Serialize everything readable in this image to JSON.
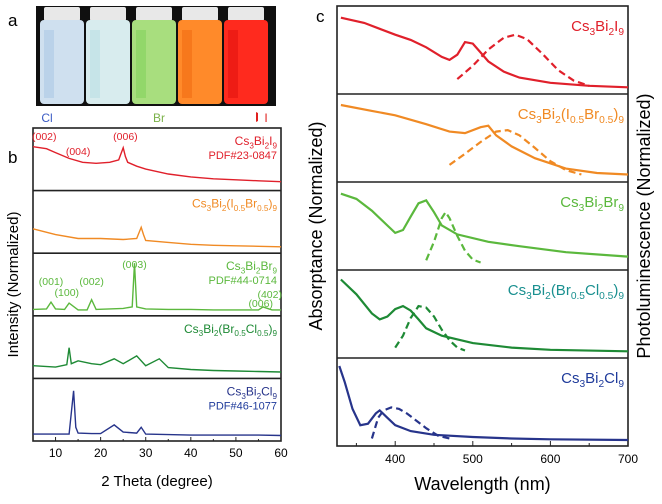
{
  "panels": {
    "a": "a",
    "b": "b",
    "c": "c"
  },
  "photo": {
    "vials": [
      {
        "color": "#cfe0ef",
        "tint": "#a9c6e4"
      },
      {
        "color": "#d8ecee",
        "tint": "#b8dfe3"
      },
      {
        "color": "#a8de7e",
        "tint": "#7fd15a"
      },
      {
        "color": "#ff8a2a",
        "tint": "#f06a10"
      },
      {
        "color": "#ff2a1e",
        "tint": "#e0100e"
      }
    ],
    "scale_labels": [
      "Cl",
      "Br",
      "I"
    ]
  },
  "colors": {
    "red": "#e0202b",
    "orange": "#f08a24",
    "lightgreen": "#5bb83d",
    "darkgreen": "#1e8a35",
    "blue": "#27348b",
    "blue_text": "#1f3b9b",
    "teal_text": "#1a9090"
  },
  "chart_data": [
    {
      "type": "line",
      "panel": "b",
      "xlabel": "2 Theta (degree)",
      "ylabel": "Intensity (Normalized)",
      "xlim": [
        5,
        60
      ],
      "xticks": [
        10,
        20,
        30,
        40,
        50,
        60
      ],
      "series": [
        {
          "compound_parts": [
            [
              "Cs",
              ""
            ],
            [
              "3",
              "sub"
            ],
            [
              "Bi",
              ""
            ],
            [
              "2",
              "sub"
            ],
            [
              "I",
              ""
            ],
            [
              "9",
              "sub"
            ]
          ],
          "pdf": "PDF#23-0847",
          "color_key": "red",
          "peaks": [
            [
              "(002)",
              7.5
            ],
            [
              "(004)",
              15
            ],
            [
              "(006)",
              25.5
            ]
          ],
          "x": [
            5,
            8,
            10,
            13,
            16,
            19,
            22,
            24,
            25,
            25.5,
            26,
            28,
            30,
            35,
            40,
            45,
            50,
            55,
            60
          ],
          "y": [
            0.82,
            0.78,
            0.7,
            0.58,
            0.5,
            0.48,
            0.5,
            0.55,
            0.8,
            0.62,
            0.5,
            0.42,
            0.36,
            0.26,
            0.2,
            0.16,
            0.14,
            0.12,
            0.1
          ]
        },
        {
          "compound_parts": [
            [
              "Cs",
              ""
            ],
            [
              "3",
              "sub"
            ],
            [
              "Bi",
              ""
            ],
            [
              "2",
              "sub"
            ],
            [
              "(I",
              ""
            ],
            [
              "0.5",
              "sub"
            ],
            [
              "Br",
              ""
            ],
            [
              "0.5",
              "sub"
            ],
            [
              ")",
              ""
            ],
            [
              "9",
              "sub"
            ]
          ],
          "color_key": "orange",
          "x": [
            5,
            10,
            15,
            20,
            25,
            28,
            29,
            29.5,
            30,
            35,
            40,
            45,
            50,
            55,
            60
          ],
          "y": [
            0.42,
            0.3,
            0.22,
            0.22,
            0.2,
            0.22,
            0.45,
            0.3,
            0.18,
            0.14,
            0.1,
            0.08,
            0.07,
            0.06,
            0.05
          ]
        },
        {
          "compound_parts": [
            [
              "Cs",
              ""
            ],
            [
              "3",
              "sub"
            ],
            [
              "Bi",
              ""
            ],
            [
              "2",
              "sub"
            ],
            [
              "Br",
              ""
            ],
            [
              "9",
              "sub"
            ]
          ],
          "pdf": "PDF#44-0714",
          "color_key": "lightgreen",
          "peaks": [
            [
              "(001)",
              9
            ],
            [
              "(100)",
              12.5
            ],
            [
              "(002)",
              18
            ],
            [
              "(003)",
              27.5
            ],
            [
              "(006)",
              55.5
            ],
            [
              "(402)",
              57.5
            ]
          ],
          "x": [
            5,
            8,
            9,
            10,
            12,
            13,
            15,
            17,
            18,
            19,
            22,
            25,
            27,
            27.5,
            28,
            30,
            35,
            40,
            45,
            50,
            55,
            56,
            58,
            60
          ],
          "y": [
            0.05,
            0.06,
            0.2,
            0.06,
            0.05,
            0.18,
            0.04,
            0.04,
            0.25,
            0.05,
            0.06,
            0.07,
            0.1,
            1.0,
            0.1,
            0.06,
            0.05,
            0.05,
            0.04,
            0.04,
            0.04,
            0.1,
            0.04,
            0.04
          ]
        },
        {
          "compound_parts": [
            [
              "Cs",
              ""
            ],
            [
              "3",
              "sub"
            ],
            [
              "Bi",
              ""
            ],
            [
              "2",
              "sub"
            ],
            [
              "(Br",
              ""
            ],
            [
              "0.5",
              "sub"
            ],
            [
              "Cl",
              ""
            ],
            [
              "0.5",
              "sub"
            ],
            [
              ")",
              ""
            ],
            [
              "9",
              "sub"
            ]
          ],
          "color_key": "darkgreen",
          "x": [
            5,
            10,
            12.5,
            13,
            13.5,
            15,
            18,
            20,
            23,
            25,
            28,
            30,
            33,
            35,
            40,
            45,
            50,
            55,
            60
          ],
          "y": [
            0.18,
            0.15,
            0.2,
            0.55,
            0.22,
            0.28,
            0.22,
            0.2,
            0.32,
            0.22,
            0.38,
            0.18,
            0.32,
            0.14,
            0.1,
            0.08,
            0.07,
            0.06,
            0.05
          ]
        },
        {
          "compound_parts": [
            [
              "Cs",
              ""
            ],
            [
              "3",
              "sub"
            ],
            [
              "Bi",
              ""
            ],
            [
              "2",
              "sub"
            ],
            [
              "Cl",
              ""
            ],
            [
              "9",
              "sub"
            ]
          ],
          "pdf": "PDF#46-1077",
          "color_key": "blue",
          "x": [
            5,
            10,
            13,
            14,
            14.5,
            15,
            18,
            20,
            23,
            25,
            28,
            29,
            30,
            35,
            40,
            45,
            50,
            55,
            60
          ],
          "y": [
            0.06,
            0.06,
            0.06,
            0.95,
            0.2,
            0.08,
            0.07,
            0.07,
            0.25,
            0.1,
            0.08,
            0.2,
            0.06,
            0.05,
            0.04,
            0.04,
            0.04,
            0.04,
            0.03
          ]
        }
      ]
    },
    {
      "type": "line",
      "panel": "c",
      "xlabel": "Wavelength (nm)",
      "ylabel_left": "Absorptance (Normalized)",
      "ylabel_right": "Photoluminescence (Normalized)",
      "xlim": [
        325,
        700
      ],
      "xticks": [
        400,
        500,
        600,
        700
      ],
      "series": [
        {
          "compound_parts": [
            [
              "Cs",
              ""
            ],
            [
              "3",
              "sub"
            ],
            [
              "Bi",
              ""
            ],
            [
              "2",
              "sub"
            ],
            [
              "I",
              ""
            ],
            [
              "9",
              "sub"
            ]
          ],
          "color_key": "red",
          "absorptance": {
            "x": [
              330,
              360,
              380,
              400,
              420,
              440,
              460,
              470,
              480,
              490,
              500,
              510,
              520,
              540,
              560,
              600,
              650,
              700
            ],
            "y": [
              0.95,
              0.88,
              0.8,
              0.72,
              0.65,
              0.55,
              0.42,
              0.38,
              0.45,
              0.62,
              0.6,
              0.48,
              0.36,
              0.22,
              0.14,
              0.07,
              0.03,
              0.01
            ]
          },
          "pl": {
            "x": [
              480,
              500,
              520,
              540,
              555,
              570,
              590,
              610,
              630,
              650
            ],
            "y": [
              0.12,
              0.3,
              0.52,
              0.68,
              0.72,
              0.66,
              0.46,
              0.24,
              0.1,
              0.03
            ]
          }
        },
        {
          "compound_parts": [
            [
              "Cs",
              ""
            ],
            [
              "3",
              "sub"
            ],
            [
              "Bi",
              ""
            ],
            [
              "2",
              "sub"
            ],
            [
              "(I",
              ""
            ],
            [
              "0.5",
              "sub"
            ],
            [
              "Br",
              ""
            ],
            [
              "0.5",
              "sub"
            ],
            [
              ")",
              ""
            ],
            [
              "9",
              "sub"
            ]
          ],
          "color_key": "orange",
          "absorptance": {
            "x": [
              330,
              370,
              400,
              440,
              470,
              490,
              510,
              520,
              530,
              550,
              580,
              620,
              660,
              700
            ],
            "y": [
              0.96,
              0.88,
              0.82,
              0.7,
              0.6,
              0.58,
              0.66,
              0.68,
              0.55,
              0.4,
              0.24,
              0.1,
              0.04,
              0.02
            ]
          },
          "pl": {
            "x": [
              470,
              490,
              510,
              530,
              545,
              560,
              580,
              600,
              620,
              640
            ],
            "y": [
              0.15,
              0.3,
              0.46,
              0.6,
              0.62,
              0.55,
              0.38,
              0.2,
              0.08,
              0.02
            ]
          }
        },
        {
          "compound_parts": [
            [
              "Cs",
              ""
            ],
            [
              "3",
              "sub"
            ],
            [
              "Bi",
              ""
            ],
            [
              "2",
              "sub"
            ],
            [
              "Br",
              ""
            ],
            [
              "9",
              "sub"
            ]
          ],
          "color_key": "lightgreen",
          "absorptance": {
            "x": [
              330,
              350,
              370,
              390,
              400,
              410,
              420,
              430,
              440,
              450,
              460,
              480,
              520,
              560,
              620,
              700
            ],
            "y": [
              0.95,
              0.88,
              0.72,
              0.52,
              0.42,
              0.46,
              0.64,
              0.82,
              0.86,
              0.7,
              0.52,
              0.4,
              0.3,
              0.24,
              0.16,
              0.1
            ]
          },
          "pl": {
            "x": [
              440,
              450,
              460,
              465,
              470,
              480,
              490,
              500,
              510
            ],
            "y": [
              0.05,
              0.3,
              0.62,
              0.7,
              0.62,
              0.38,
              0.18,
              0.06,
              0.02
            ]
          }
        },
        {
          "compound_parts": [
            [
              "Cs",
              ""
            ],
            [
              "3",
              "sub"
            ],
            [
              "Bi",
              ""
            ],
            [
              "2",
              "sub"
            ],
            [
              "(Br",
              ""
            ],
            [
              "0.5",
              "sub"
            ],
            [
              "Cl",
              ""
            ],
            [
              "0.5",
              "sub"
            ],
            [
              ")",
              ""
            ],
            [
              "9",
              "sub"
            ]
          ],
          "color_key": "darkgreen",
          "absorptance": {
            "x": [
              330,
              350,
              370,
              380,
              390,
              400,
              410,
              420,
              430,
              440,
              460,
              500,
              550,
              600,
              700
            ],
            "y": [
              0.98,
              0.78,
              0.52,
              0.44,
              0.48,
              0.58,
              0.62,
              0.56,
              0.44,
              0.32,
              0.22,
              0.12,
              0.06,
              0.03,
              0.01
            ]
          },
          "pl": {
            "x": [
              400,
              410,
              420,
              430,
              440,
              450,
              460,
              470,
              480,
              490
            ],
            "y": [
              0.06,
              0.22,
              0.46,
              0.62,
              0.6,
              0.48,
              0.3,
              0.16,
              0.06,
              0.02
            ]
          }
        },
        {
          "compound_parts": [
            [
              "Cs",
              ""
            ],
            [
              "3",
              "sub"
            ],
            [
              "Bi",
              ""
            ],
            [
              "2",
              "sub"
            ],
            [
              "Cl",
              ""
            ],
            [
              "9",
              "sub"
            ]
          ],
          "color_key": "blue",
          "absorptance": {
            "x": [
              328,
              335,
              345,
              355,
              365,
              375,
              380,
              390,
              400,
              420,
              450,
              500,
              550,
              600,
              700
            ],
            "y": [
              1.0,
              0.78,
              0.42,
              0.2,
              0.22,
              0.36,
              0.4,
              0.3,
              0.2,
              0.12,
              0.07,
              0.04,
              0.02,
              0.01,
              0.0
            ]
          },
          "pl": {
            "x": [
              370,
              378,
              385,
              395,
              405,
              415,
              425,
              440,
              455,
              470
            ],
            "y": [
              0.02,
              0.3,
              0.4,
              0.44,
              0.42,
              0.36,
              0.28,
              0.16,
              0.06,
              0.02
            ]
          }
        }
      ]
    }
  ]
}
